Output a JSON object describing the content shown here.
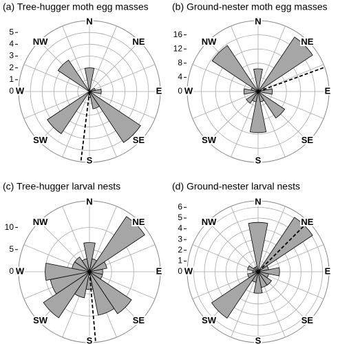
{
  "chart_data": [
    {
      "type": "rose",
      "title": "(a)  Tree-hugger moth egg masses",
      "categories": [
        "N",
        null,
        "NE",
        null,
        "E",
        null,
        "SE",
        null,
        "S",
        null,
        "SW",
        null,
        "W",
        null,
        "NW",
        null
      ],
      "values": [
        2,
        0,
        0,
        0.5,
        1,
        0,
        5.2,
        1.5,
        0.5,
        0,
        4.3,
        0,
        0,
        0,
        3.2,
        0
      ],
      "color": "#a6a6a6",
      "ylim": [
        0,
        6
      ],
      "yticks": [
        0,
        1,
        2,
        3,
        4,
        5
      ],
      "mean_direction": 187
    },
    {
      "type": "rose",
      "title": "(b)  Ground-nester moth egg masses",
      "categories": [
        "N",
        null,
        "NE",
        null,
        "E",
        null,
        "SE",
        null,
        "S",
        null,
        "SW",
        null,
        "W",
        null,
        "NW",
        null
      ],
      "values": [
        6.4,
        0,
        18.5,
        2,
        4,
        0,
        9,
        3,
        11.6,
        3,
        4,
        0,
        4,
        2,
        15.6,
        0
      ],
      "color": "#a6a6a6",
      "ylim": [
        0,
        20
      ],
      "yticks": [
        0,
        4,
        8,
        12,
        16
      ],
      "mean_direction": 70
    },
    {
      "type": "rose",
      "title": "(c)  Tree-hugger larval nests",
      "categories": [
        "N",
        null,
        "NE",
        null,
        "E",
        null,
        "SE",
        null,
        "S",
        null,
        "SW",
        null,
        "W",
        null,
        "NW",
        null
      ],
      "values": [
        6.6,
        3,
        15,
        4,
        3,
        3,
        11.4,
        10,
        4,
        6,
        12.5,
        9,
        10,
        4,
        4,
        3
      ],
      "color": "#a6a6a6",
      "ylim": [
        0,
        16
      ],
      "yticks": [
        0,
        5,
        10
      ],
      "mean_direction": 175
    },
    {
      "type": "rose",
      "title": "(d)  Ground-nester larval nests",
      "categories": [
        "N",
        null,
        "NE",
        null,
        "E",
        null,
        "SE",
        null,
        "S",
        null,
        "SW",
        null,
        "W",
        null,
        "NW",
        null
      ],
      "values": [
        4.6,
        0,
        6.1,
        1,
        2,
        1,
        1.5,
        1.5,
        2,
        1,
        5.2,
        1,
        0.5,
        1,
        0.5,
        0.5
      ],
      "color": "#a6a6a6",
      "ylim": [
        0,
        6.6
      ],
      "yticks": [
        0,
        1,
        2,
        3,
        4,
        5,
        6
      ],
      "mean_direction": 45
    }
  ]
}
